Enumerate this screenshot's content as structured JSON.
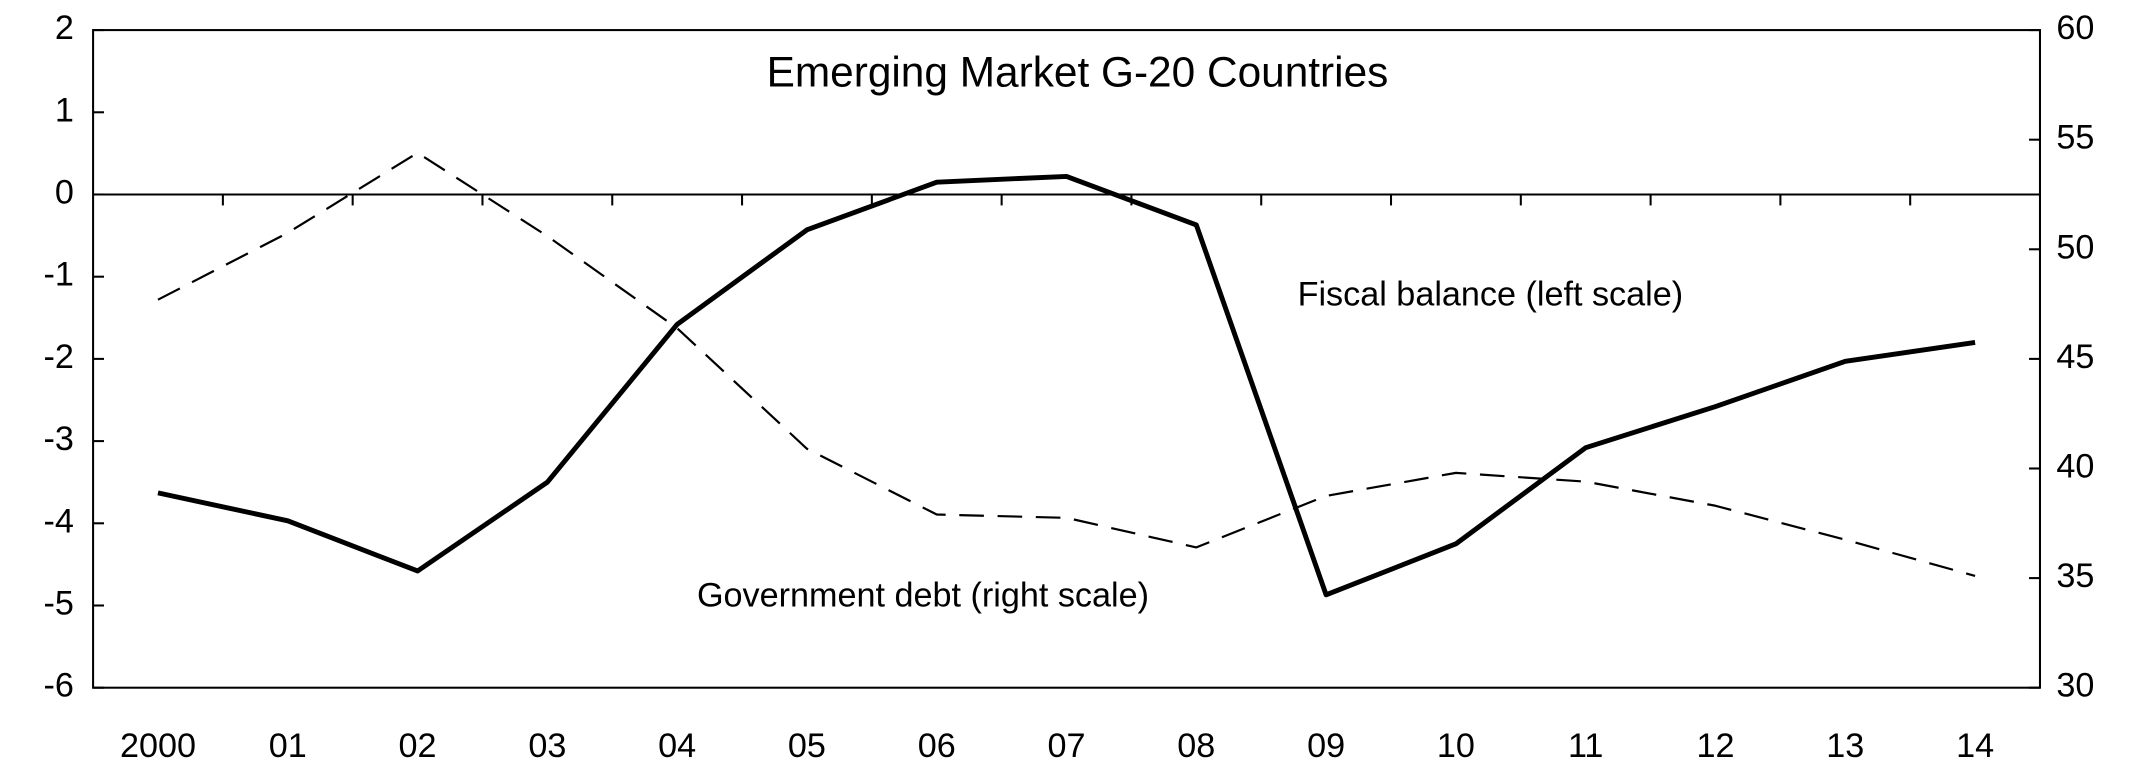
{
  "chart_data": {
    "type": "line",
    "title": "Emerging Market G-20 Countries",
    "categories": [
      "2000",
      "01",
      "02",
      "03",
      "04",
      "05",
      "06",
      "07",
      "08",
      "09",
      "10",
      "11",
      "12",
      "13",
      "14"
    ],
    "series": [
      {
        "name": "Fiscal balance (left scale)",
        "color": "#000000",
        "linestyle": "solid",
        "values": [
          -3.63,
          -3.97,
          -4.58,
          -3.5,
          -1.58,
          -0.43,
          0.15,
          0.22,
          -0.37,
          -4.87,
          -4.25,
          -3.08,
          -2.58,
          -2.03,
          -1.8
        ]
      },
      {
        "name": "Government debt (right scale)",
        "color": "#000000",
        "linestyle": "dashed",
        "axis": "y2",
        "values": [
          47.7,
          50.75,
          54.4,
          50.6,
          46.4,
          40.9,
          37.9,
          37.75,
          36.4,
          38.75,
          39.8,
          39.4,
          38.3,
          36.75,
          35.1
        ]
      }
    ],
    "ylim": [
      -6,
      2
    ],
    "yticks": [
      -6,
      -5,
      -4,
      -3,
      -2,
      -1,
      0,
      1,
      2
    ],
    "y2lim": [
      30,
      60
    ],
    "y2ticks": [
      30,
      35,
      40,
      45,
      50,
      55,
      60
    ],
    "zero_line": true
  }
}
